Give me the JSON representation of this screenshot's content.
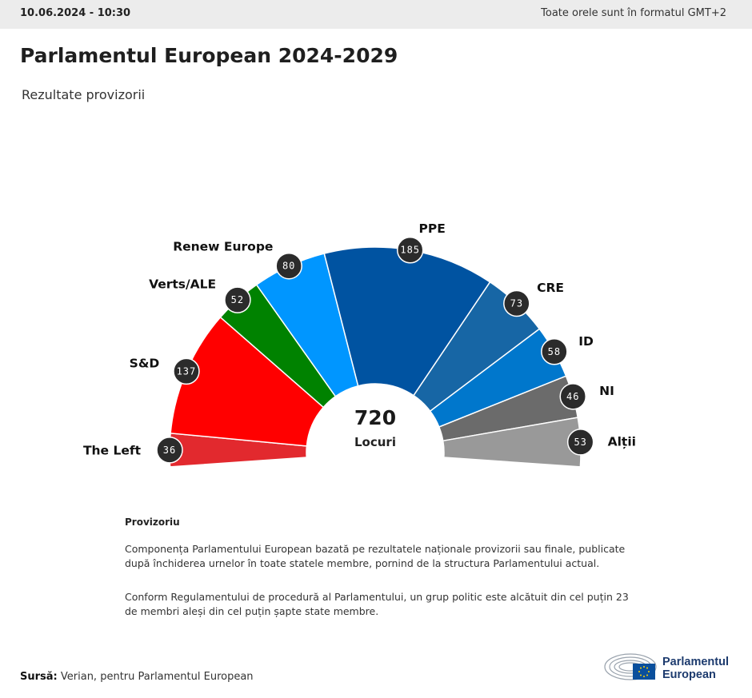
{
  "header": {
    "date": "10.06.2024 - 10:30",
    "timezone_note": "Toate orele sunt în formatul GMT+2"
  },
  "page": {
    "title": "Parlamentul European 2024-2029",
    "subtitle": "Rezultate provizorii"
  },
  "chart_data": {
    "type": "pie",
    "total": 720,
    "total_label": "Locuri",
    "series": [
      {
        "name": "The Left",
        "value": 36,
        "color": "#e2292e"
      },
      {
        "name": "S&D",
        "value": 137,
        "color": "#ff0000"
      },
      {
        "name": "Verts/ALE",
        "value": 52,
        "color": "#008200"
      },
      {
        "name": "Renew Europe",
        "value": 80,
        "color": "#0096ff"
      },
      {
        "name": "PPE",
        "value": 185,
        "color": "#0053a1"
      },
      {
        "name": "CRE",
        "value": 73,
        "color": "#1766a5"
      },
      {
        "name": "ID",
        "value": 58,
        "color": "#0077cc"
      },
      {
        "name": "NI",
        "value": 46,
        "color": "#6b6b6b"
      },
      {
        "name": "Alții",
        "value": 53,
        "color": "#999999"
      }
    ]
  },
  "notes": {
    "heading": "Provizoriu",
    "paragraph1": "Componența Parlamentului European bazată pe rezultatele naționale provizorii sau finale, publicate după închiderea urnelor în toate statele membre, pornind de la structura Parlamentului actual.",
    "paragraph2": "Conform Regulamentului de procedură al Parlamentului, un grup politic este alcătuit din cel puțin 23 de membri aleși din cel puțin șapte state membre."
  },
  "footer": {
    "source_label": "Sursă:",
    "source_text": "Verian, pentru Parlamentul European",
    "logo_line1": "Parlamentul",
    "logo_line2": "European"
  }
}
